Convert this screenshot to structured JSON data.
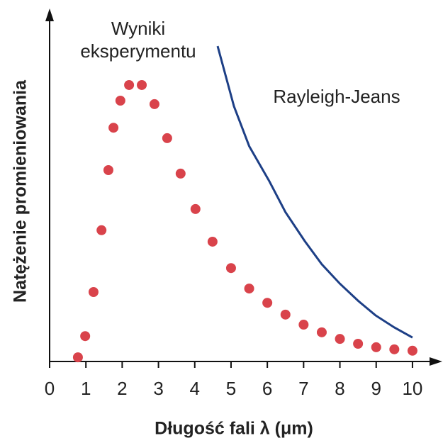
{
  "chart_data": {
    "type": "scatter",
    "xlabel": "Długość fali λ (μm)",
    "ylabel": "Natężenie promieniowania",
    "xlim": [
      0,
      10.9
    ],
    "ylim": [
      0,
      100
    ],
    "xticks": [
      0,
      1,
      2,
      3,
      4,
      5,
      6,
      7,
      8,
      9,
      10
    ],
    "series": [
      {
        "name": "Wyniki eksperymentu",
        "color": "#d9434b",
        "kind": "points",
        "x": [
          0.78,
          0.98,
          1.21,
          1.43,
          1.62,
          1.76,
          1.95,
          2.19,
          2.54,
          2.89,
          3.24,
          3.61,
          4.02,
          4.49,
          5.0,
          5.5,
          6.0,
          6.5,
          7.0,
          7.5,
          8.0,
          8.5,
          9.0,
          9.5,
          10.0
        ],
        "values": [
          1.2,
          7.3,
          20,
          37.8,
          55.1,
          67.3,
          75.1,
          79.6,
          79.6,
          74.1,
          64.3,
          54.1,
          43.9,
          34.5,
          26.9,
          21,
          16.9,
          13.5,
          10.6,
          8.4,
          6.5,
          5.1,
          4.1,
          3.5,
          3.1
        ]
      },
      {
        "name": "Rayleigh-Jeans",
        "color": "#1d3f86",
        "kind": "line",
        "x": [
          4.63,
          5.08,
          5.5,
          6.05,
          6.5,
          7.03,
          7.5,
          8.0,
          8.5,
          8.98,
          9.5,
          10.0
        ],
        "values": [
          90.8,
          73.5,
          62,
          52,
          43,
          34.7,
          28,
          22.4,
          17.5,
          13.3,
          9.8,
          6.9
        ]
      }
    ]
  }
}
